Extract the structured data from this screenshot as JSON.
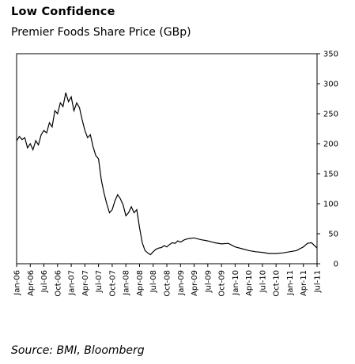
{
  "header": {
    "title": "Low Confidence",
    "subtitle": "Premier Foods Share Price (GBp)"
  },
  "footer": {
    "source": "Source: BMI, Bloomberg"
  },
  "chart_data": {
    "type": "line",
    "title": "Low Confidence",
    "subtitle": "Premier Foods Share Price (GBp)",
    "xlabel": "",
    "ylabel": "",
    "ylim": [
      0,
      350
    ],
    "yticks": [
      0,
      50,
      100,
      150,
      200,
      250,
      300,
      350
    ],
    "y_axis_position": "right",
    "grid": false,
    "legend": "none",
    "line_color": "#000000",
    "xticks": [
      "Jan-06",
      "Apr-06",
      "Jul-06",
      "Oct-06",
      "Jan-07",
      "Apr-07",
      "Jul-07",
      "Oct-07",
      "Jan-08",
      "Apr-08",
      "Jul-08",
      "Oct-08",
      "Jan-09",
      "Apr-09",
      "Jul-09",
      "Oct-09",
      "Jan-10",
      "Apr-10",
      "Jul-10",
      "Oct-10",
      "Jan-11",
      "Apr-11",
      "Jul-11"
    ],
    "series": [
      {
        "name": "",
        "x": [
          0,
          0.2,
          0.4,
          0.6,
          0.8,
          1,
          1.2,
          1.4,
          1.6,
          1.8,
          2,
          2.2,
          2.4,
          2.6,
          2.8,
          3,
          3.2,
          3.4,
          3.6,
          3.8,
          4,
          4.2,
          4.4,
          4.6,
          4.8,
          5,
          5.2,
          5.4,
          5.6,
          5.8,
          6,
          6.2,
          6.4,
          6.6,
          6.8,
          7,
          7.2,
          7.4,
          7.6,
          7.8,
          8,
          8.2,
          8.4,
          8.6,
          8.8,
          9,
          9.2,
          9.4,
          9.6,
          9.8,
          10,
          10.2,
          10.4,
          10.6,
          10.8,
          11,
          11.2,
          11.4,
          11.6,
          11.8,
          12,
          12.3,
          12.6,
          13,
          13.5,
          14,
          14.5,
          15,
          15.5,
          16,
          16.5,
          17,
          17.5,
          18,
          18.5,
          19,
          19.5,
          20,
          20.5,
          21,
          21.3,
          21.6,
          22
        ],
        "values": [
          205,
          212,
          207,
          210,
          193,
          200,
          190,
          205,
          198,
          215,
          222,
          218,
          235,
          228,
          255,
          250,
          268,
          262,
          285,
          270,
          278,
          255,
          268,
          260,
          240,
          222,
          210,
          215,
          195,
          180,
          175,
          140,
          118,
          100,
          85,
          90,
          105,
          115,
          108,
          98,
          80,
          85,
          95,
          85,
          90,
          60,
          35,
          22,
          18,
          15,
          20,
          24,
          26,
          27,
          30,
          28,
          32,
          35,
          34,
          38,
          36,
          40,
          42,
          43,
          40,
          38,
          35,
          33,
          34,
          28,
          25,
          22,
          20,
          19,
          17,
          17,
          18,
          20,
          22,
          28,
          34,
          35,
          26
        ]
      }
    ]
  }
}
